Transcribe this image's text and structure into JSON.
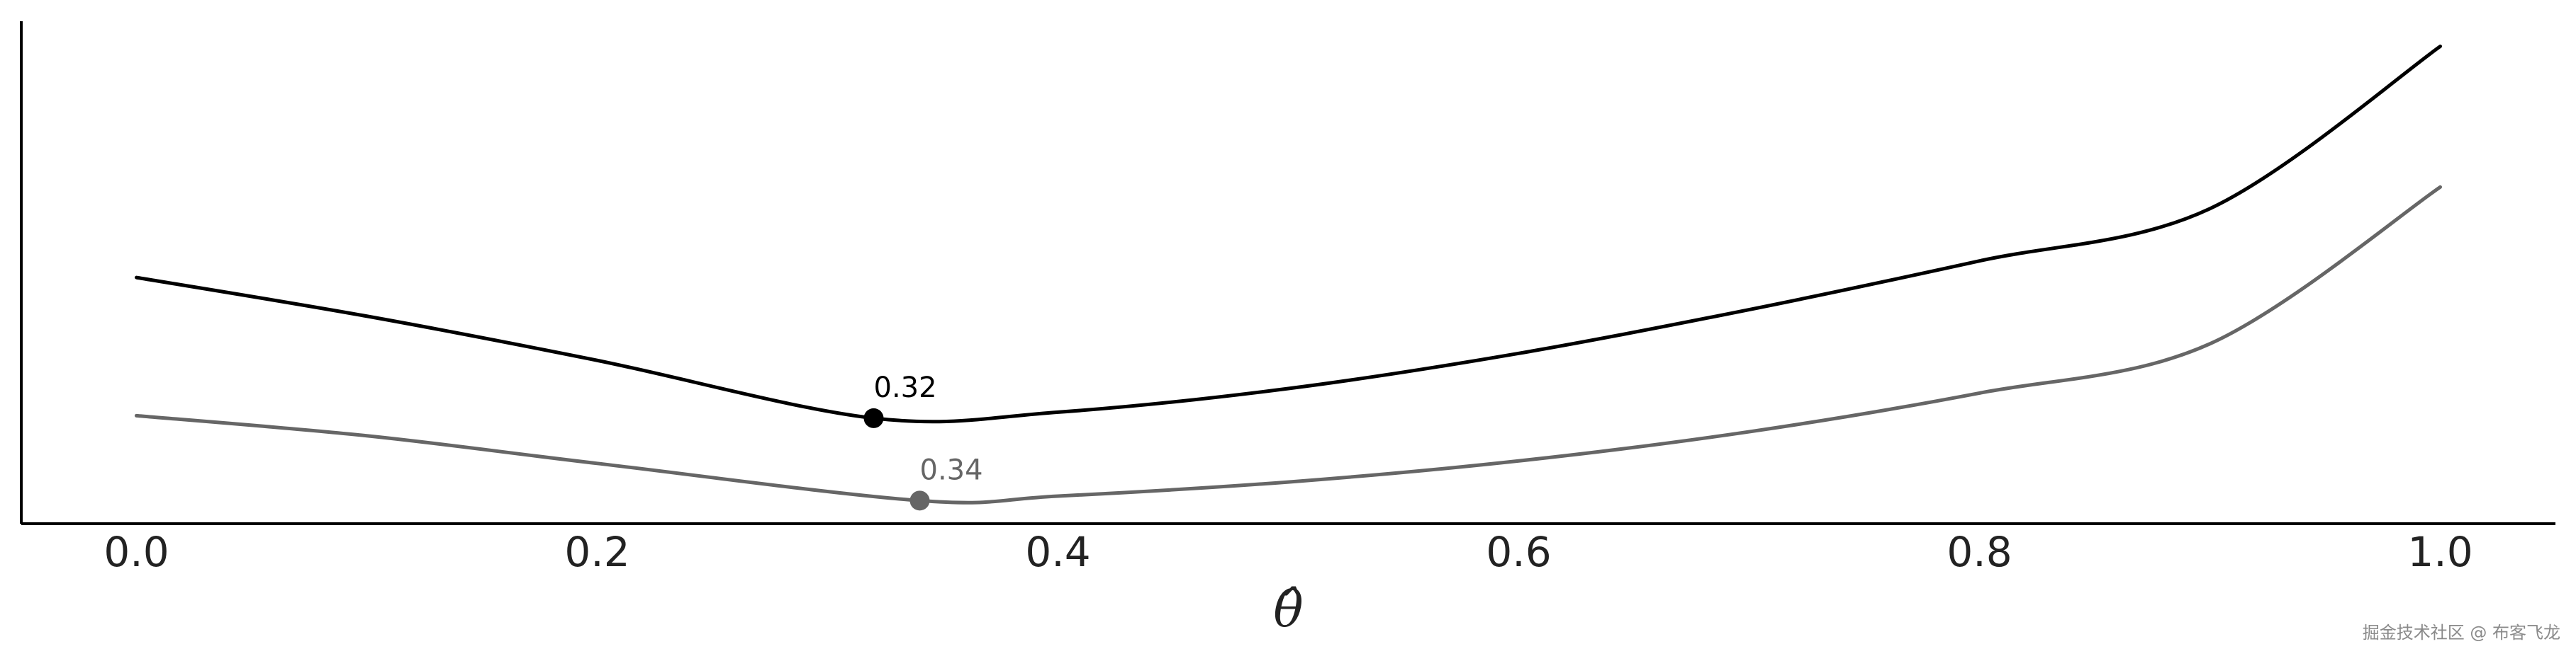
{
  "chart_data": {
    "type": "line",
    "title": "",
    "xlabel": "θ̂",
    "ylabel": "",
    "xlim": [
      -0.05,
      1.05
    ],
    "ylim": [
      0,
      1
    ],
    "x_ticks": [
      0.0,
      0.2,
      0.4,
      0.6,
      0.8,
      1.0
    ],
    "x_tick_labels": [
      "0.0",
      "0.2",
      "0.4",
      "0.6",
      "0.8",
      "1.0"
    ],
    "grid": false,
    "legend": false,
    "series": [
      {
        "color": "#000000",
        "x": [
          0.0,
          0.1,
          0.2,
          0.32,
          0.4,
          0.5,
          0.6,
          0.7,
          0.8,
          0.9,
          1.0
        ],
        "y": [
          0.49,
          0.413,
          0.325,
          0.21,
          0.222,
          0.269,
          0.339,
          0.426,
          0.523,
          0.627,
          0.95
        ],
        "min_x": 0.32,
        "min_y": 0.21,
        "min_label": "0.32"
      },
      {
        "color": "#666666",
        "x": [
          0.0,
          0.1,
          0.2,
          0.34,
          0.4,
          0.5,
          0.6,
          0.7,
          0.8,
          0.9,
          1.0
        ],
        "y": [
          0.215,
          0.175,
          0.12,
          0.046,
          0.055,
          0.083,
          0.125,
          0.183,
          0.26,
          0.358,
          0.67
        ],
        "min_x": 0.34,
        "min_y": 0.046,
        "min_label": "0.34"
      }
    ]
  },
  "watermark": "掘金技术社区 @ 布客飞龙"
}
